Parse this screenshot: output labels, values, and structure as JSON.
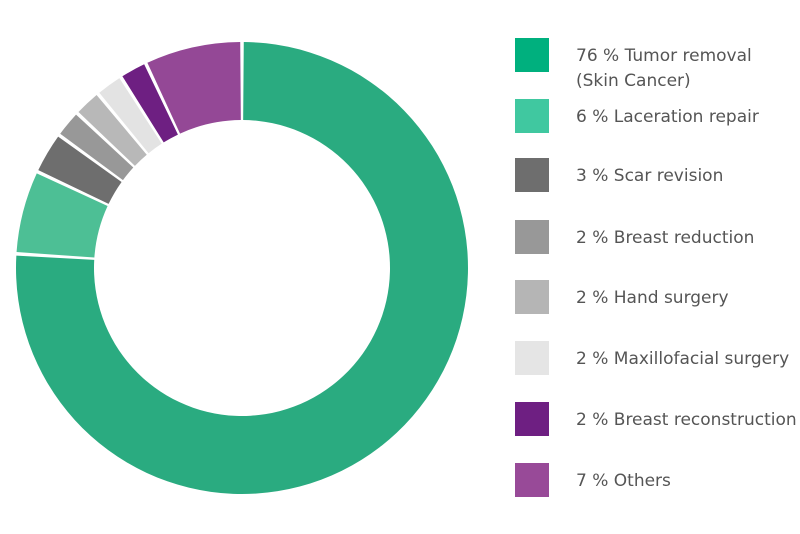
{
  "chart_data": {
    "type": "pie",
    "variant": "donut",
    "title": "",
    "legend_position": "right",
    "slices": [
      {
        "value": 76,
        "label": "76 % Tumor removal",
        "label_line2": "(Skin Cancer)",
        "color": "#2aab80"
      },
      {
        "value": 6,
        "label": "6 % Laceration repair",
        "color": "#4dbf95"
      },
      {
        "value": 3,
        "label": "3 % Scar revision",
        "color": "#6e6e6e"
      },
      {
        "value": 2,
        "label": "2 % Breast reduction",
        "color": "#989898"
      },
      {
        "value": 2,
        "label": "2 % Hand surgery",
        "color": "#b8b8b8"
      },
      {
        "value": 2,
        "label": "2 % Maxillofacial surgery",
        "color": "#e3e3e3"
      },
      {
        "value": 2,
        "label": "2 % Breast reconstruction",
        "color": "#6e1f82"
      },
      {
        "value": 7,
        "label": "7 % Others",
        "color": "#944896"
      }
    ],
    "legend_colors": [
      "#00b07e",
      "#40c8a0",
      "#6e6e6e",
      "#989898",
      "#b5b5b5",
      "#e5e5e5",
      "#6e1f82",
      "#984a98"
    ]
  }
}
